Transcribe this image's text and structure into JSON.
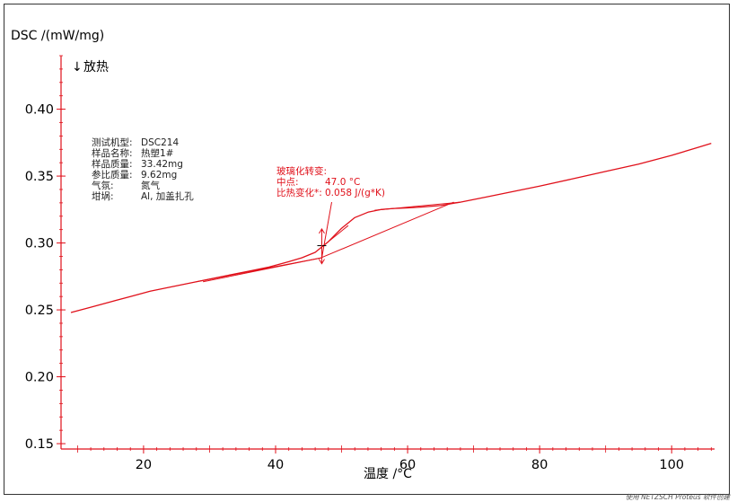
{
  "chart_data": {
    "type": "line",
    "ylabel": "DSC /(mW/mg)",
    "xlabel": "温度 /°C",
    "exo_label": "放热",
    "xlim": [
      7.5,
      106.5
    ],
    "ylim": [
      0.146,
      0.44
    ],
    "x_ticks": [
      20,
      40,
      60,
      80,
      100
    ],
    "y_ticks": [
      0.4,
      0.35,
      0.3,
      0.25,
      0.2,
      0.15
    ],
    "y_tick_labels": [
      "0.40",
      "0.35",
      "0.30",
      "0.25",
      "0.20",
      "0.15"
    ],
    "series": [
      {
        "color": "#e0101a",
        "x": [
          9,
          12,
          15,
          18,
          21,
          24,
          27,
          30,
          33,
          36,
          39,
          42,
          44,
          46,
          47,
          48,
          49,
          50,
          51,
          52,
          53,
          54,
          55,
          56,
          57,
          58,
          60,
          62,
          65,
          68,
          72,
          76,
          80,
          85,
          90,
          95,
          100,
          104,
          106
        ],
        "y": [
          0.248,
          0.252,
          0.256,
          0.26,
          0.264,
          0.267,
          0.27,
          0.273,
          0.276,
          0.279,
          0.282,
          0.286,
          0.289,
          0.293,
          0.297,
          0.301,
          0.306,
          0.311,
          0.315,
          0.319,
          0.321,
          0.323,
          0.324,
          0.325,
          0.3255,
          0.3258,
          0.3262,
          0.3268,
          0.328,
          0.3305,
          0.3345,
          0.3385,
          0.3425,
          0.348,
          0.3535,
          0.359,
          0.3655,
          0.3715,
          0.3745
        ]
      }
    ],
    "tangent_lines": [
      {
        "x": [
          28,
          47
        ],
        "y": [
          0.271,
          0.289
        ]
      },
      {
        "x": [
          29,
          47
        ],
        "y": [
          0.271,
          0.289
        ]
      },
      {
        "x": [
          47,
          67
        ],
        "y": [
          0.2892,
          0.3305
        ]
      },
      {
        "x": [
          47,
          51
        ],
        "y": [
          0.297,
          0.313
        ]
      },
      {
        "x": [
          55,
          68
        ],
        "y": [
          0.3245,
          0.3305
        ]
      },
      {
        "x": [
          47,
          48.5
        ],
        "y": [
          0.289,
          0.3305
        ]
      }
    ],
    "annotation": {
      "marker_x": 47,
      "marker_y": 0.298,
      "color": "#e0101a",
      "lines": [
        {
          "label": "玻璃化转变:",
          "value": ""
        },
        {
          "label": "中点:",
          "value": "47.0 °C"
        },
        {
          "label": "比热变化*:",
          "value": "0.058 J/(g*K)"
        }
      ]
    },
    "info_block": [
      {
        "label": "测试机型:",
        "value": "DSC214"
      },
      {
        "label": "样品名称:",
        "value": "热塑1#"
      },
      {
        "label": "样品质量:",
        "value": "33.42mg"
      },
      {
        "label": "参比质量:",
        "value": "9.62mg"
      },
      {
        "label": "气氛:",
        "value": "氮气"
      },
      {
        "label": "坩埚:",
        "value": "Al, 加盖扎孔"
      }
    ],
    "footer": "使用 NETZSCH Proteus 软件创建",
    "axis_color": "#e0101a",
    "grid": false
  }
}
